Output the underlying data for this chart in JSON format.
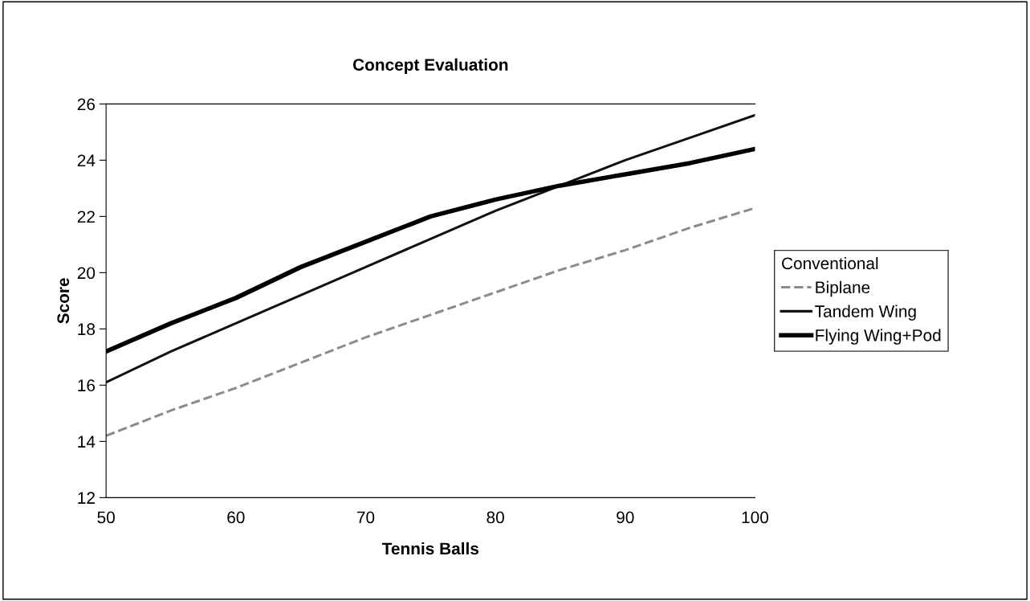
{
  "chart_data": {
    "type": "line",
    "title": "Concept Evaluation",
    "xlabel": "Tennis Balls",
    "ylabel": "Score",
    "x": [
      50,
      55,
      60,
      65,
      70,
      75,
      80,
      85,
      90,
      95,
      100
    ],
    "series": [
      {
        "name": "Biplane",
        "color": "#8c8c8c",
        "line_style": "dashed",
        "values": [
          14.2,
          15.1,
          15.9,
          16.8,
          17.7,
          18.5,
          19.3,
          20.1,
          20.8,
          21.6,
          22.3
        ]
      },
      {
        "name": "Tandem Wing",
        "color": "#111111",
        "values": [
          16.1,
          17.2,
          18.2,
          19.2,
          20.2,
          21.2,
          22.2,
          23.1,
          24.0,
          24.8,
          25.6
        ]
      },
      {
        "name": "Flying Wing+Pod",
        "color": "#000000",
        "values": [
          17.2,
          18.2,
          19.1,
          20.2,
          21.1,
          22.0,
          22.6,
          23.1,
          23.5,
          23.9,
          24.4
        ]
      }
    ],
    "legend_title": "Conventional",
    "legend": "right",
    "xlim": [
      50,
      100
    ],
    "xticks": [
      50,
      60,
      70,
      80,
      90,
      100
    ],
    "ylim": [
      12,
      26
    ],
    "yticks": [
      12,
      14,
      16,
      18,
      20,
      22,
      24,
      26
    ],
    "marker": "none"
  }
}
